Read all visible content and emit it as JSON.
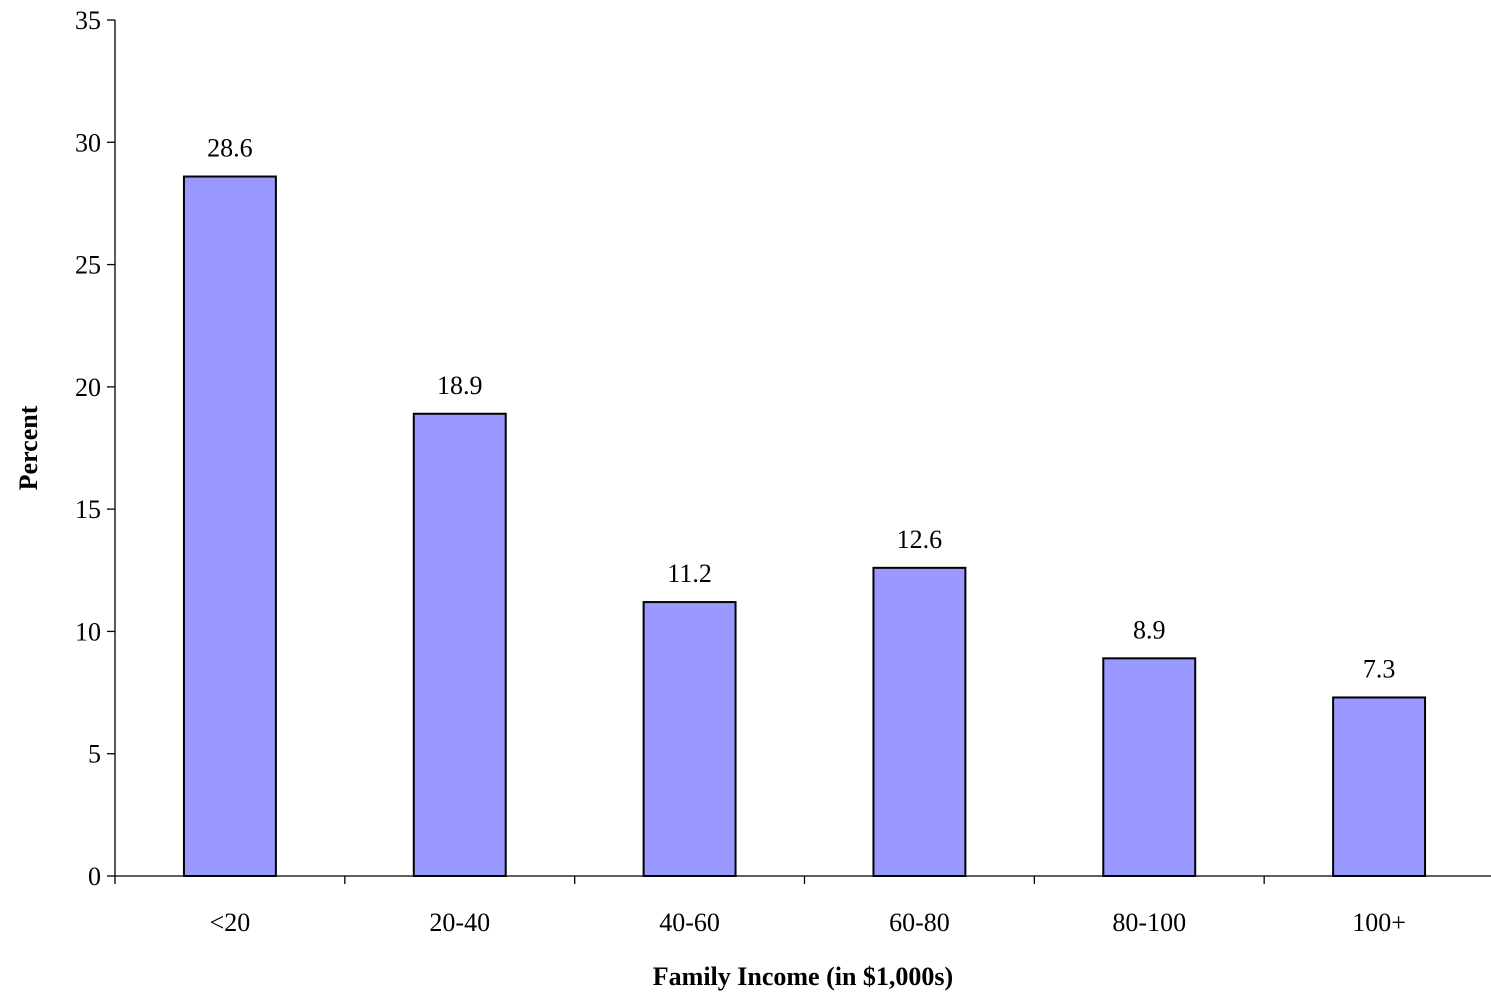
{
  "chart_data": {
    "type": "bar",
    "title": "",
    "xlabel": "Family Income (in $1,000s)",
    "ylabel": "Percent",
    "categories": [
      "<20",
      "20-40",
      "40-60",
      "60-80",
      "80-100",
      "100+"
    ],
    "values": [
      28.6,
      18.9,
      11.2,
      12.6,
      8.9,
      7.3
    ],
    "value_labels": [
      "28.6",
      "18.9",
      "11.2",
      "12.6",
      "8.9",
      "7.3"
    ],
    "ylim": [
      0,
      35
    ],
    "yticks": [
      0,
      5,
      10,
      15,
      20,
      25,
      30,
      35
    ],
    "ytick_labels": [
      "0",
      "5",
      "10",
      "15",
      "20",
      "25",
      "30",
      "35"
    ],
    "grid": false,
    "legend": "none",
    "bar_color": "#9999ff"
  }
}
